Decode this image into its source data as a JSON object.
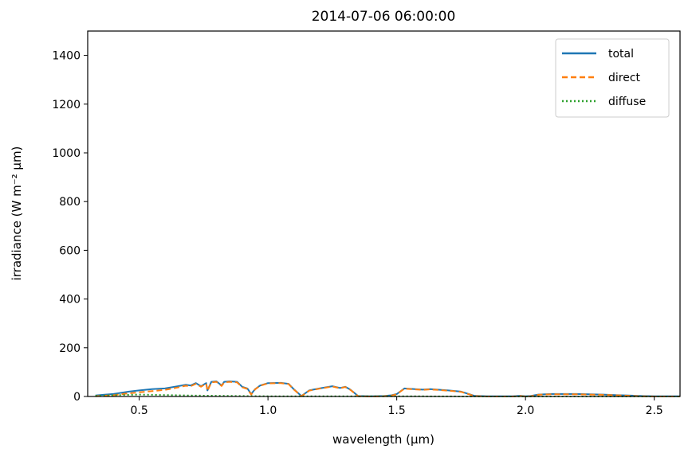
{
  "chart_data": {
    "type": "line",
    "title": "2014-07-06 06:00:00",
    "xlabel": "wavelength (µm)",
    "ylabel": "irradiance (W m⁻² µm)",
    "xlim": [
      0.3,
      2.6
    ],
    "ylim": [
      0,
      1500
    ],
    "xticks": [
      0.5,
      1.0,
      1.5,
      2.0,
      2.5
    ],
    "xtick_labels": [
      "0.5",
      "1.0",
      "1.5",
      "2.0",
      "2.5"
    ],
    "yticks": [
      0,
      200,
      400,
      600,
      800,
      1000,
      1200,
      1400
    ],
    "ytick_labels": [
      "0",
      "200",
      "400",
      "600",
      "800",
      "1000",
      "1200",
      "1400"
    ],
    "grid": false,
    "legend": "top-right",
    "series": [
      {
        "name": "total",
        "color": "#1f77b4",
        "style": "solid",
        "x": [
          0.33,
          0.36,
          0.4,
          0.43,
          0.46,
          0.5,
          0.55,
          0.6,
          0.65,
          0.68,
          0.7,
          0.72,
          0.74,
          0.76,
          0.765,
          0.78,
          0.8,
          0.82,
          0.83,
          0.85,
          0.88,
          0.9,
          0.92,
          0.935,
          0.95,
          0.97,
          1.0,
          1.05,
          1.08,
          1.1,
          1.13,
          1.16,
          1.2,
          1.25,
          1.28,
          1.3,
          1.32,
          1.35,
          1.4,
          1.45,
          1.48,
          1.5,
          1.53,
          1.57,
          1.6,
          1.63,
          1.7,
          1.75,
          1.78,
          1.8,
          1.85,
          1.9,
          1.95,
          1.98,
          2.0,
          2.02,
          2.05,
          2.1,
          2.15,
          2.2,
          2.25,
          2.3,
          2.35,
          2.4,
          2.45,
          2.5,
          2.55,
          2.6
        ],
        "y": [
          4,
          7,
          10,
          15,
          20,
          25,
          30,
          33,
          42,
          48,
          45,
          55,
          42,
          55,
          25,
          60,
          62,
          45,
          60,
          62,
          60,
          40,
          33,
          10,
          30,
          45,
          55,
          56,
          52,
          30,
          2,
          25,
          33,
          42,
          35,
          40,
          28,
          2,
          1,
          2,
          5,
          10,
          33,
          30,
          28,
          30,
          25,
          20,
          10,
          3,
          1,
          1,
          1,
          3,
          1,
          2,
          8,
          10,
          10,
          10,
          9,
          8,
          6,
          4,
          2,
          1,
          1,
          1
        ]
      },
      {
        "name": "direct",
        "color": "#ff7f0e",
        "style": "dashed",
        "x": [
          0.33,
          0.36,
          0.4,
          0.43,
          0.46,
          0.5,
          0.55,
          0.6,
          0.65,
          0.68,
          0.7,
          0.72,
          0.74,
          0.76,
          0.765,
          0.78,
          0.8,
          0.82,
          0.83,
          0.85,
          0.88,
          0.9,
          0.92,
          0.935,
          0.95,
          0.97,
          1.0,
          1.05,
          1.08,
          1.1,
          1.13,
          1.16,
          1.2,
          1.25,
          1.28,
          1.3,
          1.32,
          1.35,
          1.4,
          1.45,
          1.48,
          1.5,
          1.53,
          1.57,
          1.6,
          1.63,
          1.7,
          1.75,
          1.78,
          1.8,
          1.85,
          1.9,
          1.95,
          1.98,
          2.0,
          2.02,
          2.05,
          2.1,
          2.15,
          2.2,
          2.25,
          2.3,
          2.35,
          2.4,
          2.45,
          2.5,
          2.55,
          2.6
        ],
        "y": [
          1,
          3,
          5,
          9,
          13,
          17,
          22,
          27,
          37,
          44,
          42,
          52,
          40,
          53,
          23,
          58,
          60,
          43,
          58,
          60,
          58,
          38,
          31,
          8,
          29,
          44,
          54,
          55,
          51,
          29,
          1,
          24,
          32,
          41,
          34,
          39,
          27,
          1,
          0,
          1,
          4,
          9,
          32,
          29,
          27,
          29,
          24,
          19,
          9,
          2,
          0,
          0,
          0,
          2,
          0,
          1,
          7,
          9,
          9,
          9,
          8,
          7,
          5,
          3,
          1,
          0,
          0,
          0
        ]
      },
      {
        "name": "diffuse",
        "color": "#2ca02c",
        "style": "dotted",
        "x": [
          0.33,
          0.4,
          0.5,
          0.6,
          0.7,
          0.8,
          0.9,
          1.0,
          1.2,
          1.5,
          1.8,
          2.0,
          2.3,
          2.6
        ],
        "y": [
          3,
          5,
          8,
          6,
          4,
          3,
          2,
          1,
          1,
          1,
          0,
          0,
          0,
          0
        ]
      }
    ]
  }
}
